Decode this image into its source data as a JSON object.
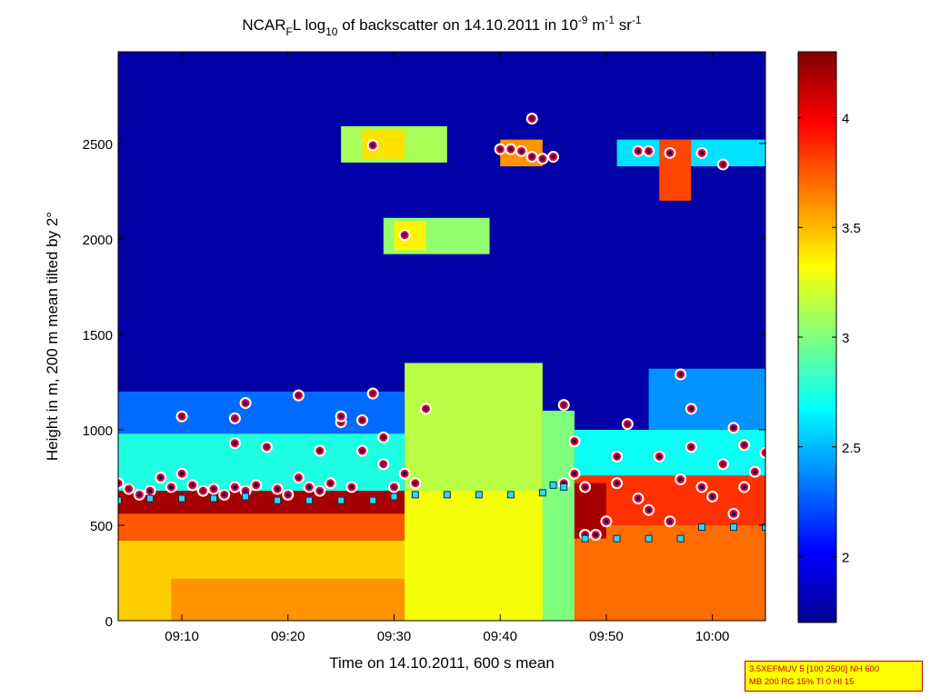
{
  "chart_data": {
    "type": "heatmap",
    "title": {
      "text": "NCAR",
      "sub1": "F",
      "text2": "L log",
      "sub2": "10",
      "text3": " of backscatter on 14.10.2011 in 10",
      "sup1": "-9",
      "text4": " m",
      "sup2": "-1",
      "text5": " sr",
      "sup3": "-1"
    },
    "xlabel": "Time on 14.10.2011, 600 s mean",
    "ylabel": "Height in m, 200 m mean tilted by 2°",
    "xlim": [
      "09:04",
      "10:05"
    ],
    "ylim": [
      0,
      2980
    ],
    "x_ticks": [
      "09:10",
      "09:20",
      "09:30",
      "09:40",
      "09:50",
      "10:00"
    ],
    "y_ticks": [
      0,
      500,
      1000,
      1500,
      2000,
      2500
    ],
    "colorbar": {
      "colormap": "jet",
      "limits": [
        1.7,
        4.3
      ],
      "ticks": [
        2,
        2.5,
        3,
        3.5,
        4
      ],
      "tick_labels": [
        "2",
        "2.5",
        "3",
        "3.5",
        "4"
      ]
    },
    "layers": [
      {
        "t0": "09:04",
        "t1": "10:05",
        "h0": 0,
        "h1": 2980,
        "value": 1.8
      },
      {
        "t0": "09:04",
        "t1": "09:47",
        "h0": 0,
        "h1": 420,
        "value": 3.45
      },
      {
        "t0": "09:09",
        "t1": "09:36",
        "h0": 0,
        "h1": 220,
        "value": 3.6
      },
      {
        "t0": "09:04",
        "t1": "09:31",
        "h0": 420,
        "h1": 640,
        "value": 3.75
      },
      {
        "t0": "09:04",
        "t1": "09:31",
        "h0": 560,
        "h1": 680,
        "value": 4.2
      },
      {
        "t0": "09:04",
        "t1": "09:31",
        "h0": 680,
        "h1": 980,
        "value": 2.75
      },
      {
        "t0": "09:04",
        "t1": "09:31",
        "h0": 980,
        "h1": 1200,
        "value": 2.3
      },
      {
        "t0": "09:31",
        "t1": "09:44",
        "h0": 0,
        "h1": 1350,
        "value": 3.15
      },
      {
        "t0": "09:31",
        "t1": "09:44",
        "h0": 0,
        "h1": 680,
        "value": 3.3
      },
      {
        "t0": "09:44",
        "t1": "09:47",
        "h0": 0,
        "h1": 1100,
        "value": 3.0
      },
      {
        "t0": "09:47",
        "t1": "10:05",
        "h0": 0,
        "h1": 500,
        "value": 3.7
      },
      {
        "t0": "09:47",
        "t1": "10:05",
        "h0": 500,
        "h1": 760,
        "value": 3.85
      },
      {
        "t0": "09:47",
        "t1": "09:50",
        "h0": 430,
        "h1": 720,
        "value": 4.2
      },
      {
        "t0": "09:47",
        "t1": "10:05",
        "h0": 760,
        "h1": 1000,
        "value": 2.7
      },
      {
        "t0": "09:54",
        "t1": "10:05",
        "h0": 1000,
        "h1": 1320,
        "value": 2.4
      },
      {
        "t0": "09:25",
        "t1": "09:35",
        "h0": 2400,
        "h1": 2590,
        "value": 3.1
      },
      {
        "t0": "09:27",
        "t1": "09:31",
        "h0": 2420,
        "h1": 2570,
        "value": 3.4
      },
      {
        "t0": "09:29",
        "t1": "09:39",
        "h0": 1920,
        "h1": 2110,
        "value": 3.05
      },
      {
        "t0": "09:30",
        "t1": "09:33",
        "h0": 1940,
        "h1": 2090,
        "value": 3.35
      },
      {
        "t0": "09:40",
        "t1": "09:44",
        "h0": 2380,
        "h1": 2520,
        "value": 3.6
      },
      {
        "t0": "09:51",
        "t1": "10:05",
        "h0": 2380,
        "h1": 2520,
        "value": 2.6
      },
      {
        "t0": "09:55",
        "t1": "09:58",
        "h0": 2200,
        "h1": 2520,
        "value": 3.8
      }
    ],
    "series": [
      {
        "marker": "circle",
        "points": [
          [
            "09:04",
            720
          ],
          [
            "09:05",
            690
          ],
          [
            "09:06",
            660
          ],
          [
            "09:07",
            680
          ],
          [
            "09:08",
            750
          ],
          [
            "09:09",
            700
          ],
          [
            "09:10",
            770
          ],
          [
            "09:10",
            1070
          ],
          [
            "09:11",
            710
          ],
          [
            "09:12",
            680
          ],
          [
            "09:13",
            690
          ],
          [
            "09:14",
            660
          ],
          [
            "09:15",
            700
          ],
          [
            "09:15",
            930
          ],
          [
            "09:15",
            1060
          ],
          [
            "09:16",
            680
          ],
          [
            "09:16",
            1140
          ],
          [
            "09:17",
            710
          ],
          [
            "09:18",
            910
          ],
          [
            "09:19",
            690
          ],
          [
            "09:20",
            660
          ],
          [
            "09:21",
            750
          ],
          [
            "09:21",
            1180
          ],
          [
            "09:22",
            700
          ],
          [
            "09:23",
            680
          ],
          [
            "09:23",
            890
          ],
          [
            "09:24",
            720
          ],
          [
            "09:25",
            1040
          ],
          [
            "09:25",
            1070
          ],
          [
            "09:26",
            700
          ],
          [
            "09:27",
            890
          ],
          [
            "09:27",
            1050
          ],
          [
            "09:28",
            2490
          ],
          [
            "09:28",
            1190
          ],
          [
            "09:29",
            960
          ],
          [
            "09:29",
            820
          ],
          [
            "09:30",
            700
          ],
          [
            "09:31",
            2020
          ],
          [
            "09:31",
            770
          ],
          [
            "09:32",
            720
          ],
          [
            "09:33",
            1110
          ],
          [
            "09:40",
            2470
          ],
          [
            "09:41",
            2470
          ],
          [
            "09:42",
            2460
          ],
          [
            "09:43",
            2430
          ],
          [
            "09:43",
            2630
          ],
          [
            "09:44",
            2420
          ],
          [
            "09:45",
            2430
          ],
          [
            "09:46",
            720
          ],
          [
            "09:46",
            1130
          ],
          [
            "09:47",
            940
          ],
          [
            "09:47",
            770
          ],
          [
            "09:48",
            700
          ],
          [
            "09:48",
            450
          ],
          [
            "09:49",
            450
          ],
          [
            "09:50",
            520
          ],
          [
            "09:51",
            720
          ],
          [
            "09:51",
            860
          ],
          [
            "09:52",
            1030
          ],
          [
            "09:53",
            640
          ],
          [
            "09:53",
            2460
          ],
          [
            "09:54",
            2460
          ],
          [
            "09:54",
            580
          ],
          [
            "09:55",
            860
          ],
          [
            "09:56",
            2450
          ],
          [
            "09:56",
            520
          ],
          [
            "09:57",
            740
          ],
          [
            "09:57",
            1290
          ],
          [
            "09:58",
            1110
          ],
          [
            "09:58",
            910
          ],
          [
            "09:59",
            2450
          ],
          [
            "09:59",
            700
          ],
          [
            "10:00",
            650
          ],
          [
            "10:01",
            2390
          ],
          [
            "10:01",
            820
          ],
          [
            "10:02",
            560
          ],
          [
            "10:02",
            1010
          ],
          [
            "10:03",
            700
          ],
          [
            "10:03",
            920
          ],
          [
            "10:04",
            780
          ],
          [
            "10:05",
            880
          ]
        ]
      },
      {
        "marker": "square",
        "points": [
          [
            "09:04",
            630
          ],
          [
            "09:07",
            640
          ],
          [
            "09:10",
            640
          ],
          [
            "09:13",
            640
          ],
          [
            "09:16",
            650
          ],
          [
            "09:19",
            630
          ],
          [
            "09:22",
            630
          ],
          [
            "09:25",
            630
          ],
          [
            "09:28",
            630
          ],
          [
            "09:30",
            650
          ],
          [
            "09:32",
            660
          ],
          [
            "09:35",
            660
          ],
          [
            "09:38",
            660
          ],
          [
            "09:41",
            660
          ],
          [
            "09:44",
            670
          ],
          [
            "09:45",
            710
          ],
          [
            "09:46",
            700
          ],
          [
            "09:48",
            430
          ],
          [
            "09:51",
            430
          ],
          [
            "09:54",
            430
          ],
          [
            "09:57",
            430
          ],
          [
            "09:59",
            490
          ],
          [
            "10:02",
            490
          ],
          [
            "10:05",
            490
          ]
        ]
      }
    ]
  },
  "stamp": {
    "line1": "3.5XEFMUV 5 [100 2500] NH 600",
    "line2": "MB 200 RG 15% TI 0 HI 15"
  }
}
